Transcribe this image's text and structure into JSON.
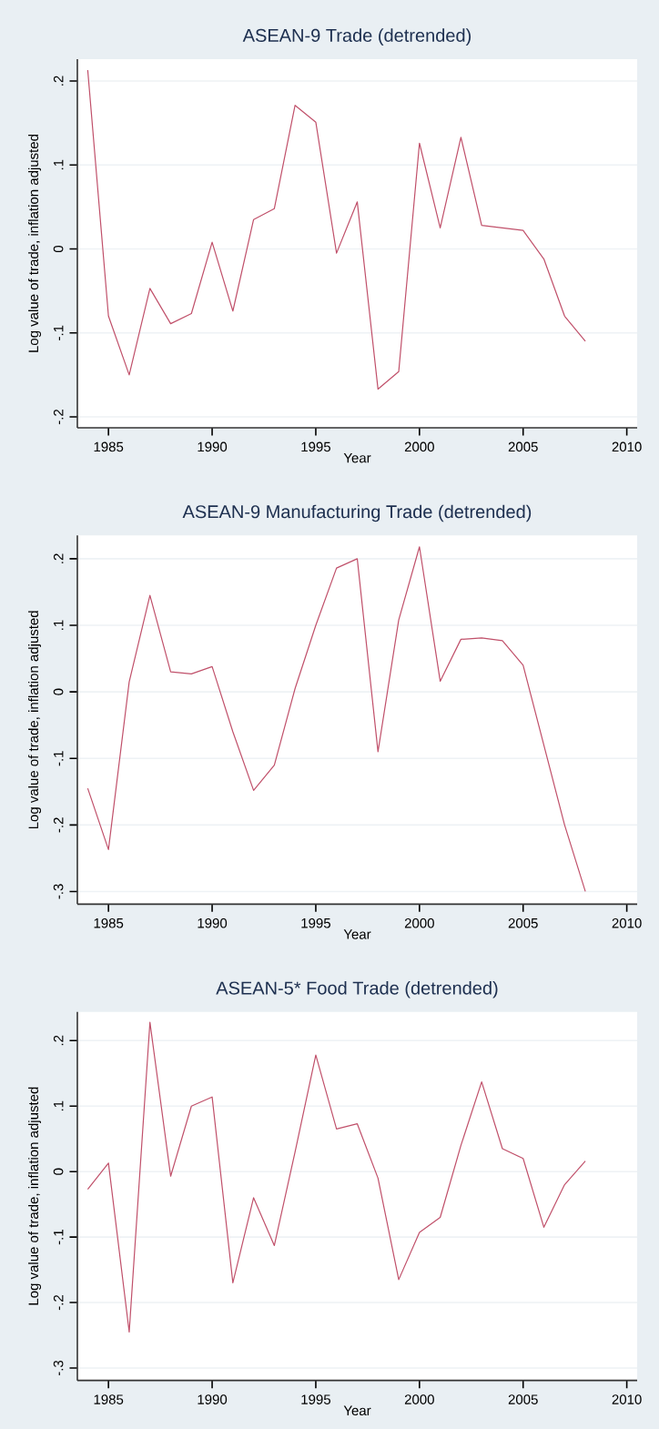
{
  "chart_data": [
    {
      "type": "line",
      "title": "ASEAN-9 Trade (detrended)",
      "xlabel": "Year",
      "ylabel": "Log value of trade, inflation adjusted",
      "color": "#c0506a",
      "grid": "y",
      "x": [
        1984,
        1985,
        1986,
        1987,
        1988,
        1989,
        1990,
        1991,
        1992,
        1993,
        1994,
        1995,
        1996,
        1997,
        1998,
        1999,
        2000,
        2001,
        2002,
        2003,
        2004,
        2005,
        2006,
        2007,
        2008
      ],
      "values": [
        0.213,
        -0.08,
        -0.15,
        -0.047,
        -0.089,
        -0.077,
        0.008,
        -0.074,
        0.035,
        0.048,
        0.171,
        0.151,
        -0.005,
        0.056,
        -0.167,
        -0.146,
        0.126,
        0.025,
        0.133,
        0.028,
        0.025,
        0.022,
        -0.012,
        -0.08,
        -0.11
      ],
      "xlim": [
        1983.5,
        2010.5
      ],
      "ylim": [
        -0.213,
        0.226
      ],
      "xticks": [
        1985,
        1990,
        1995,
        2000,
        2005,
        2010
      ],
      "yticks": [
        {
          "value": -0.2,
          "label": "-.2"
        },
        {
          "value": -0.1,
          "label": "-.1"
        },
        0,
        {
          "value": 0.1,
          "label": ".1"
        },
        {
          "value": 0.2,
          "label": ".2"
        }
      ]
    },
    {
      "type": "line",
      "title": "ASEAN-9 Manufacturing Trade (detrended)",
      "xlabel": "Year",
      "ylabel": "Log value of trade, inflation adjusted",
      "color": "#c0506a",
      "grid": "y",
      "x": [
        1984,
        1985,
        1986,
        1987,
        1988,
        1989,
        1990,
        1991,
        1992,
        1993,
        1994,
        1995,
        1996,
        1997,
        1998,
        1999,
        2000,
        2001,
        2002,
        2003,
        2004,
        2005,
        2006,
        2007,
        2008
      ],
      "values": [
        -0.145,
        -0.237,
        0.015,
        0.145,
        0.03,
        0.027,
        0.038,
        -0.06,
        -0.148,
        -0.11,
        0.005,
        0.1,
        0.186,
        0.2,
        -0.09,
        0.108,
        0.218,
        0.016,
        0.079,
        0.081,
        0.077,
        0.04,
        -0.08,
        -0.2,
        -0.3
      ],
      "xlim": [
        1983.5,
        2010.5
      ],
      "ylim": [
        -0.319,
        0.235
      ],
      "xticks": [
        1985,
        1990,
        1995,
        2000,
        2005,
        2010
      ],
      "yticks": [
        {
          "value": -0.3,
          "label": "-.3"
        },
        {
          "value": -0.2,
          "label": "-.2"
        },
        {
          "value": -0.1,
          "label": "-.1"
        },
        0,
        {
          "value": 0.1,
          "label": ".1"
        },
        {
          "value": 0.2,
          "label": ".2"
        }
      ]
    },
    {
      "type": "line",
      "title": "ASEAN-5* Food Trade (detrended)",
      "xlabel": "Year",
      "ylabel": "Log value of trade, inflation adjusted",
      "color": "#c0506a",
      "grid": "y",
      "x": [
        1984,
        1985,
        1986,
        1987,
        1988,
        1989,
        1990,
        1991,
        1992,
        1993,
        1994,
        1995,
        1996,
        1997,
        1998,
        1999,
        2000,
        2001,
        2002,
        2003,
        2004,
        2005,
        2006,
        2007,
        2008
      ],
      "values": [
        -0.027,
        0.013,
        -0.245,
        0.228,
        -0.007,
        0.1,
        0.114,
        -0.17,
        -0.04,
        -0.113,
        0.03,
        0.178,
        0.065,
        0.073,
        -0.01,
        -0.165,
        -0.093,
        -0.07,
        0.04,
        0.137,
        0.035,
        0.02,
        -0.085,
        -0.02,
        0.016
      ],
      "xlim": [
        1983.5,
        2010.5
      ],
      "ylim": [
        -0.319,
        0.244
      ],
      "xticks": [
        1985,
        1990,
        1995,
        2000,
        2005,
        2010
      ],
      "yticks": [
        {
          "value": -0.3,
          "label": "-.3"
        },
        {
          "value": -0.2,
          "label": "-.2"
        },
        {
          "value": -0.1,
          "label": "-.1"
        },
        0,
        {
          "value": 0.1,
          "label": ".1"
        },
        {
          "value": 0.2,
          "label": ".2"
        }
      ]
    }
  ]
}
